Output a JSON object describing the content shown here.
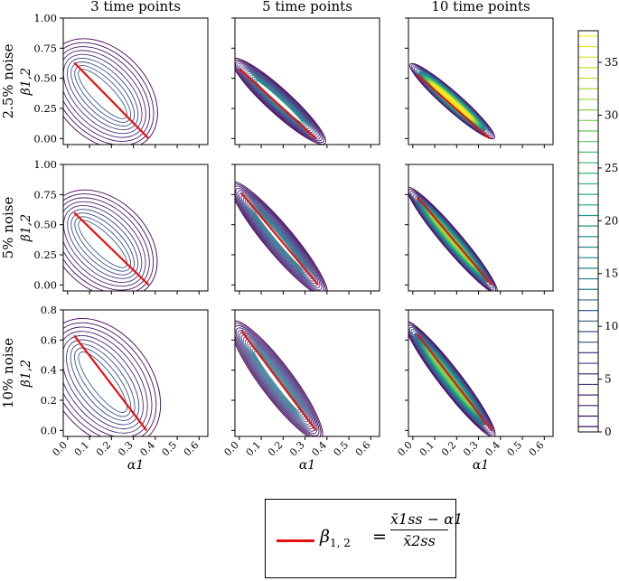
{
  "chart_data": {
    "type": "contour-grid",
    "column_titles": [
      "3 time points",
      "5 time points",
      "10 time points"
    ],
    "row_titles": [
      "2.5% noise",
      "5% noise",
      "10% noise"
    ],
    "xlabel": "α1",
    "ylabel": "β1,2",
    "xlim": [
      -0.02,
      0.64
    ],
    "xticks": [
      "0.0",
      "0.1",
      "0.2",
      "0.3",
      "0.4",
      "0.5",
      "0.6"
    ],
    "rows": [
      {
        "ylim": [
          -0.05,
          1.0
        ],
        "yticks": [
          "0.00",
          "0.25",
          "0.50",
          "0.75",
          "1.00"
        ]
      },
      {
        "ylim": [
          -0.05,
          1.0
        ],
        "yticks": [
          "0.00",
          "0.25",
          "0.50",
          "0.75",
          "1.00"
        ]
      },
      {
        "ylim": [
          -0.04,
          0.8
        ],
        "yticks": [
          "0.0",
          "0.2",
          "0.4",
          "0.6",
          "0.8"
        ]
      }
    ],
    "panels": [
      {
        "row": 0,
        "col": 0,
        "levels": 9,
        "peak": 0.3,
        "center": [
          0.16,
          0.37
        ],
        "spread_along": 0.22,
        "spread_across": 0.11,
        "line_x": [
          0.03,
          0.37
        ],
        "line_y": [
          0.63,
          0.0
        ]
      },
      {
        "row": 0,
        "col": 1,
        "levels": 14,
        "peak": 0.5,
        "center": [
          0.18,
          0.31
        ],
        "spread_along": 0.22,
        "spread_across": 0.03,
        "line_x": [
          0.0,
          0.35
        ],
        "line_y": [
          0.58,
          0.0
        ]
      },
      {
        "row": 0,
        "col": 2,
        "levels": 16,
        "peak": 1.0,
        "center": [
          0.18,
          0.31
        ],
        "spread_along": 0.21,
        "spread_across": 0.022,
        "line_x": [
          0.02,
          0.35
        ],
        "line_y": [
          0.53,
          0.0
        ]
      },
      {
        "row": 1,
        "col": 0,
        "levels": 9,
        "peak": 0.3,
        "center": [
          0.16,
          0.34
        ],
        "spread_along": 0.22,
        "spread_across": 0.11,
        "line_x": [
          0.03,
          0.37
        ],
        "line_y": [
          0.6,
          0.0
        ]
      },
      {
        "row": 1,
        "col": 1,
        "levels": 14,
        "peak": 0.45,
        "center": [
          0.18,
          0.38
        ],
        "spread_along": 0.23,
        "spread_across": 0.035,
        "line_x": [
          0.01,
          0.36
        ],
        "line_y": [
          0.76,
          0.0
        ]
      },
      {
        "row": 1,
        "col": 2,
        "levels": 16,
        "peak": 0.85,
        "center": [
          0.18,
          0.37
        ],
        "spread_along": 0.22,
        "spread_across": 0.024,
        "line_x": [
          0.02,
          0.36
        ],
        "line_y": [
          0.73,
          0.0
        ]
      },
      {
        "row": 2,
        "col": 0,
        "levels": 9,
        "peak": 0.3,
        "center": [
          0.16,
          0.32
        ],
        "spread_along": 0.22,
        "spread_across": 0.12,
        "line_x": [
          0.03,
          0.36
        ],
        "line_y": [
          0.63,
          0.0
        ]
      },
      {
        "row": 2,
        "col": 1,
        "levels": 14,
        "peak": 0.45,
        "center": [
          0.17,
          0.33
        ],
        "spread_along": 0.22,
        "spread_across": 0.04,
        "line_x": [
          0.01,
          0.35
        ],
        "line_y": [
          0.66,
          0.0
        ]
      },
      {
        "row": 2,
        "col": 2,
        "levels": 16,
        "peak": 0.8,
        "center": [
          0.17,
          0.34
        ],
        "spread_along": 0.22,
        "spread_across": 0.027,
        "line_x": [
          0.02,
          0.36
        ],
        "line_y": [
          0.64,
          0.0
        ]
      }
    ],
    "colorbar": {
      "range": [
        0,
        38
      ],
      "ticks": [
        "0",
        "5",
        "10",
        "15",
        "20",
        "25",
        "30",
        "35"
      ],
      "levels": 38
    },
    "legend": {
      "label": "β",
      "label_sub": "1, 2",
      "equals": "=",
      "numerator": "x̄1ss − α1",
      "denominator": "x̄2ss",
      "line_color": "#e8110f"
    }
  },
  "colors": {
    "fit_line": "#e8110f",
    "viridis": [
      "#440154",
      "#482878",
      "#3e4a89",
      "#31688e",
      "#26828e",
      "#1f9e89",
      "#35b779",
      "#6ece58",
      "#b5de2b",
      "#fde725"
    ]
  }
}
